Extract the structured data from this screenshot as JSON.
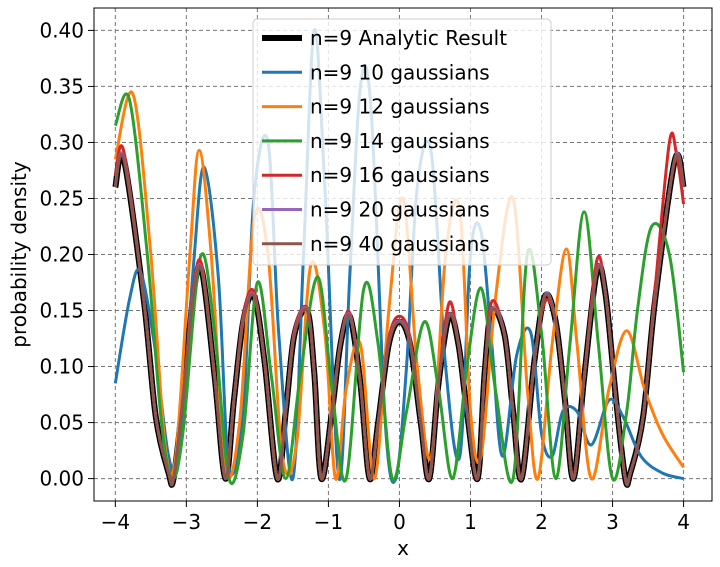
{
  "chart_data": {
    "type": "line",
    "title": "",
    "xlabel": "x",
    "ylabel": "probability density",
    "xlim": [
      -4.3,
      4.4
    ],
    "ylim": [
      -0.02,
      0.42
    ],
    "grid": true,
    "legend_position": "top-center",
    "x_ticks": [
      -4,
      -3,
      -2,
      -1,
      0,
      1,
      2,
      3,
      4
    ],
    "x_tick_labels": [
      "−4",
      "−3",
      "−2",
      "−1",
      "0",
      "1",
      "2",
      "3",
      "4"
    ],
    "y_ticks": [
      0,
      0.05,
      0.1,
      0.15,
      0.2,
      0.25,
      0.3,
      0.35,
      0.4
    ],
    "y_tick_labels": [
      "0.00",
      "0.05",
      "0.10",
      "0.15",
      "0.20",
      "0.25",
      "0.30",
      "0.35",
      "0.40"
    ],
    "series": [
      {
        "name": "n=9 Analytic Result",
        "color": "#000000",
        "width": 6,
        "x": [
          -4,
          -3.88,
          -3.6,
          -3.43,
          -3.25,
          -3.18,
          -3.05,
          -2.9,
          -2.78,
          -2.6,
          -2.45,
          -2.33,
          -2.2,
          -2.05,
          -1.9,
          -1.72,
          -1.6,
          -1.48,
          -1.3,
          -1.2,
          -1.1,
          -0.95,
          -0.83,
          -0.7,
          -0.55,
          -0.42,
          -0.3,
          -0.15,
          0,
          0.15,
          0.3,
          0.42,
          0.55,
          0.7,
          0.83,
          0.95,
          1.1,
          1.2,
          1.3,
          1.48,
          1.6,
          1.72,
          1.9,
          2.05,
          2.2,
          2.33,
          2.45,
          2.6,
          2.78,
          2.9,
          3.05,
          3.18,
          3.25,
          3.43,
          3.6,
          3.88,
          4
        ],
        "y": [
          0.26,
          0.285,
          0.16,
          0.055,
          0.005,
          0.0,
          0.07,
          0.165,
          0.185,
          0.09,
          0.0,
          0.07,
          0.14,
          0.163,
          0.105,
          0.0,
          0.06,
          0.128,
          0.15,
          0.095,
          0.0,
          0.06,
          0.12,
          0.145,
          0.085,
          0.0,
          0.05,
          0.12,
          0.14,
          0.12,
          0.05,
          0.0,
          0.085,
          0.145,
          0.12,
          0.06,
          0.0,
          0.095,
          0.15,
          0.128,
          0.06,
          0.0,
          0.105,
          0.163,
          0.14,
          0.07,
          0.0,
          0.09,
          0.185,
          0.165,
          0.07,
          0.0,
          0.005,
          0.055,
          0.16,
          0.285,
          0.26
        ]
      },
      {
        "name": "n=9 10 gaussians",
        "color": "#1f77b4",
        "width": 3,
        "x": [
          -4,
          -3.8,
          -3.65,
          -3.45,
          -3.25,
          -3.1,
          -2.9,
          -2.75,
          -2.55,
          -2.4,
          -2.2,
          -2.05,
          -1.85,
          -1.7,
          -1.5,
          -1.35,
          -1.2,
          -1.05,
          -0.85,
          -0.7,
          -0.55,
          -0.4,
          -0.2,
          -0.05,
          0.1,
          0.25,
          0.45,
          0.65,
          0.85,
          1.0,
          1.15,
          1.3,
          1.45,
          1.65,
          1.85,
          2.0,
          2.15,
          2.3,
          2.5,
          2.7,
          2.95,
          3.15,
          3.4,
          3.7,
          4
        ],
        "y": [
          0.085,
          0.16,
          0.185,
          0.12,
          0.02,
          0.02,
          0.19,
          0.278,
          0.18,
          0.01,
          0.06,
          0.25,
          0.3,
          0.13,
          0.0,
          0.2,
          0.4,
          0.26,
          0.0,
          0.18,
          0.35,
          0.33,
          0.05,
          0.0,
          0.1,
          0.26,
          0.29,
          0.1,
          0.02,
          0.2,
          0.22,
          0.12,
          0.02,
          0.11,
          0.13,
          0.04,
          0.02,
          0.06,
          0.06,
          0.03,
          0.07,
          0.055,
          0.02,
          0.005,
          0.0
        ]
      },
      {
        "name": "n=9 12 gaussians",
        "color": "#ff7f0e",
        "width": 3,
        "x": [
          -4,
          -3.75,
          -3.5,
          -3.3,
          -3.15,
          -2.95,
          -2.82,
          -2.65,
          -2.45,
          -2.25,
          -2.05,
          -1.85,
          -1.65,
          -1.45,
          -1.25,
          -1.05,
          -0.9,
          -0.75,
          -0.55,
          -0.35,
          -0.15,
          0.05,
          0.25,
          0.45,
          0.65,
          0.85,
          1.0,
          1.15,
          1.35,
          1.6,
          1.8,
          1.95,
          2.15,
          2.35,
          2.5,
          2.7,
          2.95,
          3.2,
          3.45,
          3.7,
          4
        ],
        "y": [
          0.285,
          0.343,
          0.2,
          0.03,
          0.02,
          0.2,
          0.293,
          0.2,
          0.01,
          0.05,
          0.23,
          0.2,
          0.02,
          0.03,
          0.19,
          0.13,
          0.0,
          0.08,
          0.12,
          0.0,
          0.15,
          0.25,
          0.1,
          0.02,
          0.2,
          0.24,
          0.06,
          0.02,
          0.16,
          0.25,
          0.08,
          0.0,
          0.12,
          0.205,
          0.12,
          0.0,
          0.08,
          0.132,
          0.08,
          0.04,
          0.01
        ]
      },
      {
        "name": "n=9 14 gaussians",
        "color": "#2ca02c",
        "width": 3,
        "x": [
          -4,
          -3.8,
          -3.55,
          -3.35,
          -3.2,
          -3.05,
          -2.8,
          -2.6,
          -2.4,
          -2.2,
          -2.0,
          -1.8,
          -1.6,
          -1.4,
          -1.15,
          -0.95,
          -0.75,
          -0.5,
          -0.3,
          -0.1,
          0.1,
          0.35,
          0.55,
          0.75,
          0.95,
          1.15,
          1.35,
          1.6,
          1.8,
          2.0,
          2.2,
          2.4,
          2.6,
          2.8,
          3.0,
          3.2,
          3.35,
          3.55,
          3.8,
          4
        ],
        "y": [
          0.315,
          0.338,
          0.2,
          0.05,
          0.0,
          0.04,
          0.198,
          0.13,
          0.0,
          0.04,
          0.175,
          0.09,
          0.0,
          0.09,
          0.18,
          0.08,
          0.0,
          0.17,
          0.12,
          0.0,
          0.06,
          0.14,
          0.08,
          0.0,
          0.1,
          0.17,
          0.08,
          0.0,
          0.2,
          0.13,
          0.0,
          0.12,
          0.238,
          0.12,
          0.0,
          0.06,
          0.15,
          0.225,
          0.2,
          0.095
        ]
      },
      {
        "name": "n=9 16 gaussians",
        "color": "#d62728",
        "width": 3,
        "x": [
          -4,
          -3.88,
          -3.6,
          -3.43,
          -3.25,
          -3.18,
          -3.05,
          -2.9,
          -2.78,
          -2.6,
          -2.45,
          -2.33,
          -2.2,
          -2.05,
          -1.9,
          -1.72,
          -1.6,
          -1.48,
          -1.3,
          -1.2,
          -1.1,
          -0.95,
          -0.83,
          -0.7,
          -0.55,
          -0.42,
          -0.3,
          -0.15,
          0,
          0.15,
          0.3,
          0.42,
          0.55,
          0.7,
          0.83,
          0.95,
          1.1,
          1.2,
          1.3,
          1.48,
          1.6,
          1.72,
          1.9,
          2.05,
          2.2,
          2.33,
          2.45,
          2.6,
          2.78,
          2.9,
          3.05,
          3.18,
          3.25,
          3.43,
          3.6,
          3.8,
          3.9,
          4
        ],
        "y": [
          0.27,
          0.292,
          0.16,
          0.055,
          0.005,
          0.0,
          0.07,
          0.17,
          0.19,
          0.09,
          0.0,
          0.07,
          0.145,
          0.167,
          0.105,
          0.0,
          0.06,
          0.132,
          0.152,
          0.095,
          0.0,
          0.06,
          0.122,
          0.148,
          0.085,
          0.0,
          0.05,
          0.125,
          0.145,
          0.125,
          0.05,
          0.0,
          0.085,
          0.157,
          0.12,
          0.06,
          0.0,
          0.095,
          0.158,
          0.128,
          0.06,
          0.0,
          0.105,
          0.158,
          0.14,
          0.07,
          0.0,
          0.09,
          0.195,
          0.165,
          0.07,
          0.0,
          0.005,
          0.055,
          0.17,
          0.3,
          0.29,
          0.245
        ]
      },
      {
        "name": "n=9 20 gaussians",
        "color": "#9467bd",
        "width": 3,
        "x": [
          -4,
          -3.88,
          -3.6,
          -3.43,
          -3.25,
          -3.18,
          -3.05,
          -2.9,
          -2.78,
          -2.6,
          -2.45,
          -2.33,
          -2.2,
          -2.05,
          -1.9,
          -1.72,
          -1.6,
          -1.48,
          -1.3,
          -1.2,
          -1.1,
          -0.95,
          -0.83,
          -0.7,
          -0.55,
          -0.42,
          -0.3,
          -0.15,
          0,
          0.15,
          0.3,
          0.42,
          0.55,
          0.7,
          0.83,
          0.95,
          1.1,
          1.2,
          1.3,
          1.48,
          1.6,
          1.72,
          1.9,
          2.05,
          2.2,
          2.33,
          2.45,
          2.6,
          2.78,
          2.9,
          3.05,
          3.18,
          3.25,
          3.43,
          3.6,
          3.88,
          4
        ],
        "y": [
          0.262,
          0.286,
          0.16,
          0.055,
          0.005,
          0.0,
          0.07,
          0.166,
          0.186,
          0.09,
          0.0,
          0.07,
          0.141,
          0.164,
          0.105,
          0.0,
          0.06,
          0.129,
          0.151,
          0.095,
          0.0,
          0.06,
          0.121,
          0.146,
          0.085,
          0.0,
          0.05,
          0.121,
          0.141,
          0.121,
          0.05,
          0.0,
          0.085,
          0.146,
          0.121,
          0.06,
          0.0,
          0.095,
          0.151,
          0.129,
          0.06,
          0.0,
          0.105,
          0.164,
          0.141,
          0.07,
          0.0,
          0.09,
          0.186,
          0.166,
          0.07,
          0.0,
          0.005,
          0.055,
          0.16,
          0.286,
          0.262
        ]
      },
      {
        "name": "n=9 40 gaussians",
        "color": "#8c564b",
        "width": 3,
        "x": [
          -4,
          -3.88,
          -3.6,
          -3.43,
          -3.25,
          -3.18,
          -3.05,
          -2.9,
          -2.78,
          -2.6,
          -2.45,
          -2.33,
          -2.2,
          -2.05,
          -1.9,
          -1.72,
          -1.6,
          -1.48,
          -1.3,
          -1.2,
          -1.1,
          -0.95,
          -0.83,
          -0.7,
          -0.55,
          -0.42,
          -0.3,
          -0.15,
          0,
          0.15,
          0.3,
          0.42,
          0.55,
          0.7,
          0.83,
          0.95,
          1.1,
          1.2,
          1.3,
          1.48,
          1.6,
          1.72,
          1.9,
          2.05,
          2.2,
          2.33,
          2.45,
          2.6,
          2.78,
          2.9,
          3.05,
          3.18,
          3.25,
          3.43,
          3.6,
          3.88,
          4
        ],
        "y": [
          0.26,
          0.285,
          0.16,
          0.055,
          0.005,
          0.0,
          0.07,
          0.165,
          0.185,
          0.09,
          0.0,
          0.07,
          0.14,
          0.163,
          0.105,
          0.0,
          0.06,
          0.128,
          0.15,
          0.095,
          0.0,
          0.06,
          0.12,
          0.145,
          0.085,
          0.0,
          0.05,
          0.12,
          0.14,
          0.12,
          0.05,
          0.0,
          0.085,
          0.145,
          0.12,
          0.06,
          0.0,
          0.095,
          0.15,
          0.128,
          0.06,
          0.0,
          0.105,
          0.163,
          0.14,
          0.07,
          0.0,
          0.09,
          0.185,
          0.165,
          0.07,
          0.0,
          0.005,
          0.055,
          0.16,
          0.285,
          0.26
        ]
      }
    ]
  }
}
